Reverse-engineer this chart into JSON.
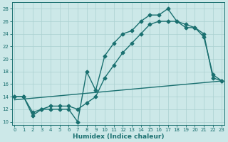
{
  "xlabel": "Humidex (Indice chaleur)",
  "bg_color": "#cce8e8",
  "line_color": "#1a7070",
  "grid_color": "#aad0d0",
  "xlim": [
    -0.3,
    23.3
  ],
  "ylim": [
    9.5,
    29
  ],
  "xticks": [
    0,
    1,
    2,
    3,
    4,
    5,
    6,
    7,
    8,
    9,
    10,
    11,
    12,
    13,
    14,
    15,
    16,
    17,
    18,
    19,
    20,
    21,
    22,
    23
  ],
  "yticks": [
    10,
    12,
    14,
    16,
    18,
    20,
    22,
    24,
    26,
    28
  ],
  "curve1_x": [
    0,
    1,
    2,
    3,
    4,
    5,
    6,
    7,
    8,
    9,
    10,
    11,
    12,
    13,
    14,
    15,
    16,
    17,
    18,
    19,
    20,
    21,
    22,
    23
  ],
  "curve1_y": [
    14,
    14,
    11,
    12,
    12,
    12,
    12,
    10,
    18,
    15,
    20.5,
    22.5,
    24,
    24.5,
    26,
    27,
    27,
    28,
    26,
    25,
    25,
    23.5,
    17.5,
    16.5
  ],
  "curve2_x": [
    0,
    1,
    2,
    3,
    4,
    5,
    6,
    7,
    8,
    9,
    10,
    11,
    12,
    13,
    14,
    15,
    16,
    17,
    18,
    19,
    20,
    21,
    22,
    23
  ],
  "curve2_y": [
    14,
    14,
    11.5,
    12,
    12.5,
    12.5,
    12.5,
    12,
    13,
    14,
    17,
    19,
    21,
    22.5,
    24,
    25.5,
    26,
    26,
    26,
    25.5,
    25,
    24,
    17,
    16.5
  ],
  "line3_x": [
    0,
    23
  ],
  "line3_y": [
    13.5,
    16.5
  ],
  "lw": 1.0,
  "ms": 2.5,
  "tick_fs": 5,
  "xlabel_fs": 6.5
}
